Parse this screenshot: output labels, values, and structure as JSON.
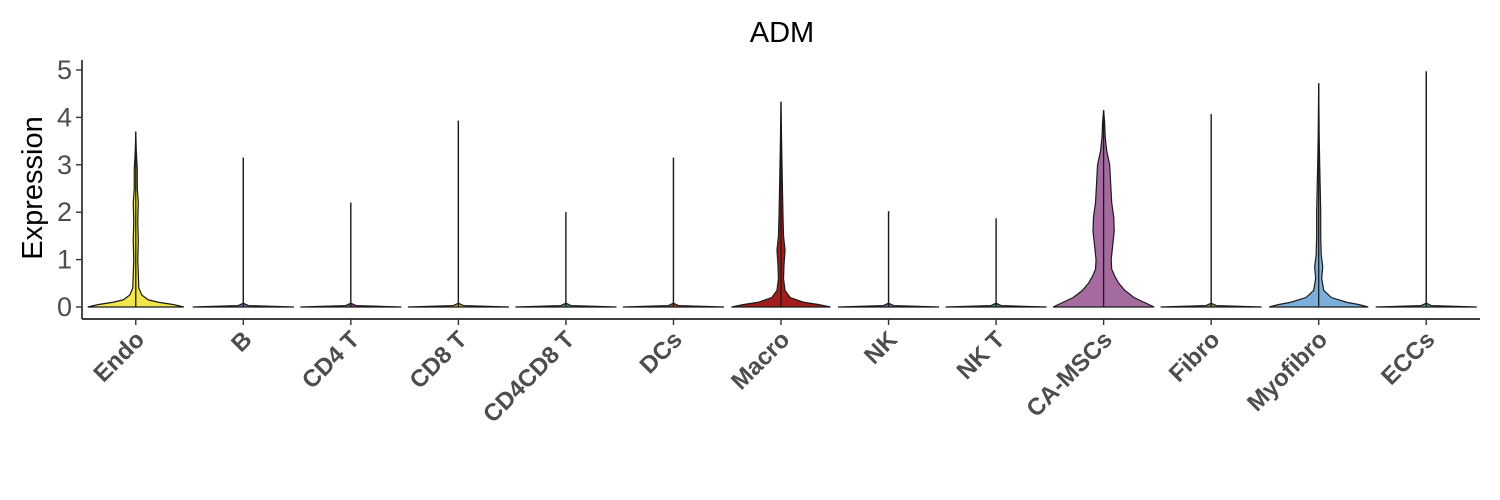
{
  "chart_data": {
    "type": "violin",
    "title": "ADM",
    "xlabel": "",
    "ylabel": "Expression",
    "ylim": [
      0,
      5.2
    ],
    "yticks": [
      0,
      1,
      2,
      3,
      4,
      5
    ],
    "grid": false,
    "legend": "none",
    "categories": [
      "Endo",
      "B",
      "CD4 T",
      "CD8 T",
      "CD4CD8 T",
      "DCs",
      "Macro",
      "NK",
      "NK T",
      "CA-MSCs",
      "Fibro",
      "Myofibro",
      "ECCs"
    ],
    "series": [
      {
        "category": "Endo",
        "max": 3.7,
        "color": "#F2E64D",
        "profile": [
          [
            0,
            0.95
          ],
          [
            0.05,
            0.75
          ],
          [
            0.1,
            0.45
          ],
          [
            0.15,
            0.25
          ],
          [
            0.25,
            0.12
          ],
          [
            0.4,
            0.06
          ],
          [
            0.7,
            0.05
          ],
          [
            1.0,
            0.04
          ],
          [
            1.4,
            0.05
          ],
          [
            1.8,
            0.04
          ],
          [
            2.2,
            0.05
          ],
          [
            2.5,
            0.03
          ],
          [
            2.9,
            0.03
          ],
          [
            3.3,
            0.01
          ],
          [
            3.7,
            0
          ]
        ]
      },
      {
        "category": "B",
        "max": 3.15,
        "color": "#7B6FA8",
        "profile": [
          [
            0,
            1.0
          ],
          [
            0.03,
            0.1
          ],
          [
            0.08,
            0.0
          ],
          [
            3.15,
            0
          ]
        ]
      },
      {
        "category": "CD4 T",
        "max": 2.2,
        "color": "#8E4A8C",
        "profile": [
          [
            0,
            1.0
          ],
          [
            0.03,
            0.1
          ],
          [
            0.08,
            0.0
          ],
          [
            2.2,
            0
          ]
        ]
      },
      {
        "category": "CD8 T",
        "max": 3.93,
        "color": "#D2A637",
        "profile": [
          [
            0,
            1.0
          ],
          [
            0.03,
            0.1
          ],
          [
            0.08,
            0.0
          ],
          [
            3.93,
            0
          ]
        ]
      },
      {
        "category": "CD4CD8 T",
        "max": 2.0,
        "color": "#5B8C74",
        "profile": [
          [
            0,
            1.0
          ],
          [
            0.03,
            0.1
          ],
          [
            0.08,
            0.0
          ],
          [
            2.0,
            0
          ]
        ]
      },
      {
        "category": "DCs",
        "max": 3.15,
        "color": "#9E4F3F",
        "profile": [
          [
            0,
            1.0
          ],
          [
            0.03,
            0.1
          ],
          [
            0.08,
            0.0
          ],
          [
            3.15,
            0
          ]
        ]
      },
      {
        "category": "Macro",
        "max": 4.33,
        "color": "#A31D1D",
        "profile": [
          [
            0,
            0.98
          ],
          [
            0.05,
            0.75
          ],
          [
            0.1,
            0.45
          ],
          [
            0.2,
            0.18
          ],
          [
            0.35,
            0.08
          ],
          [
            0.6,
            0.05
          ],
          [
            0.9,
            0.06
          ],
          [
            1.2,
            0.08
          ],
          [
            1.5,
            0.05
          ],
          [
            1.9,
            0.04
          ],
          [
            2.4,
            0.03
          ],
          [
            3.0,
            0.02
          ],
          [
            3.6,
            0.01
          ],
          [
            4.33,
            0
          ]
        ]
      },
      {
        "category": "NK",
        "max": 2.02,
        "color": "#5E6FA8",
        "profile": [
          [
            0,
            1.0
          ],
          [
            0.03,
            0.1
          ],
          [
            0.08,
            0.0
          ],
          [
            2.02,
            0
          ]
        ]
      },
      {
        "category": "NK T",
        "max": 1.87,
        "color": "#4A8A55",
        "profile": [
          [
            0,
            1.0
          ],
          [
            0.03,
            0.1
          ],
          [
            0.08,
            0.0
          ],
          [
            1.87,
            0
          ]
        ]
      },
      {
        "category": "CA-MSCs",
        "max": 4.15,
        "color": "#A56A9E",
        "profile": [
          [
            0,
            1.0
          ],
          [
            0.05,
            0.9
          ],
          [
            0.1,
            0.8
          ],
          [
            0.2,
            0.6
          ],
          [
            0.35,
            0.42
          ],
          [
            0.5,
            0.3
          ],
          [
            0.65,
            0.22
          ],
          [
            0.8,
            0.16
          ],
          [
            1.0,
            0.15
          ],
          [
            1.3,
            0.18
          ],
          [
            1.6,
            0.21
          ],
          [
            1.9,
            0.2
          ],
          [
            2.2,
            0.16
          ],
          [
            2.6,
            0.14
          ],
          [
            3.0,
            0.12
          ],
          [
            3.3,
            0.06
          ],
          [
            3.6,
            0.03
          ],
          [
            3.9,
            0.02
          ],
          [
            4.15,
            0
          ]
        ]
      },
      {
        "category": "Fibro",
        "max": 4.07,
        "color": "#8C8C5A",
        "profile": [
          [
            0,
            1.0
          ],
          [
            0.03,
            0.1
          ],
          [
            0.08,
            0.0
          ],
          [
            4.07,
            0
          ]
        ]
      },
      {
        "category": "Myofibro",
        "max": 4.72,
        "color": "#7AAFDC",
        "profile": [
          [
            0,
            0.98
          ],
          [
            0.05,
            0.8
          ],
          [
            0.1,
            0.55
          ],
          [
            0.2,
            0.25
          ],
          [
            0.35,
            0.1
          ],
          [
            0.6,
            0.06
          ],
          [
            0.85,
            0.08
          ],
          [
            1.1,
            0.05
          ],
          [
            1.5,
            0.04
          ],
          [
            2.0,
            0.04
          ],
          [
            2.5,
            0.03
          ],
          [
            3.0,
            0.02
          ],
          [
            3.6,
            0.01
          ],
          [
            4.72,
            0
          ]
        ]
      },
      {
        "category": "ECCs",
        "max": 4.97,
        "color": "#4F9E8A",
        "profile": [
          [
            0,
            1.0
          ],
          [
            0.03,
            0.1
          ],
          [
            0.08,
            0.0
          ],
          [
            4.97,
            0
          ]
        ]
      }
    ]
  }
}
